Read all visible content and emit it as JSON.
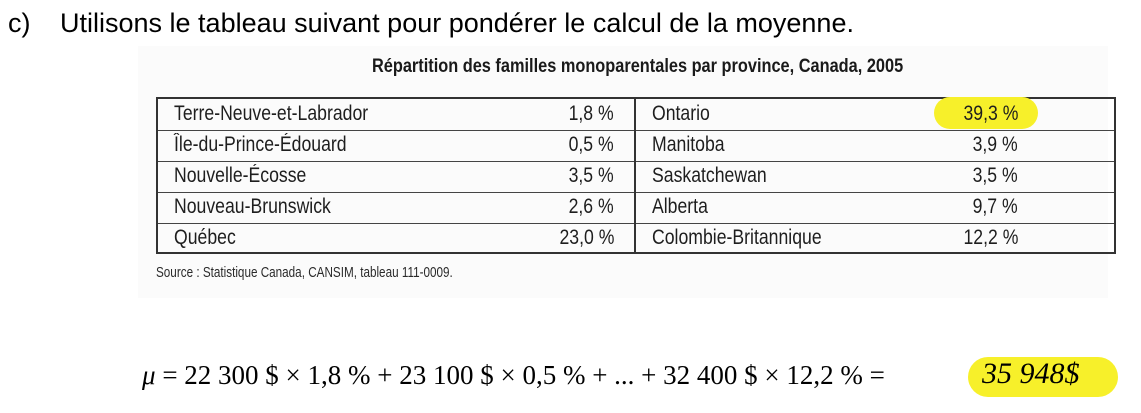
{
  "question": {
    "label": "c)",
    "text": "Utilisons le tableau suivant pour pondérer le calcul de la moyenne."
  },
  "table": {
    "title": "Répartition des familles monoparentales par province, Canada, 2005",
    "left_rows": [
      {
        "province": "Terre-Neuve-et-Labrador",
        "value": "1,8 %"
      },
      {
        "province": "Île-du-Prince-Édouard",
        "value": "0,5 %"
      },
      {
        "province": "Nouvelle-Écosse",
        "value": "3,5 %"
      },
      {
        "province": "Nouveau-Brunswick",
        "value": "2,6 %"
      },
      {
        "province": "Québec",
        "value": "23,0 %"
      }
    ],
    "right_rows": [
      {
        "province": "Ontario",
        "value": "39,3 %"
      },
      {
        "province": "Manitoba",
        "value": "3,9 %"
      },
      {
        "province": "Saskatchewan",
        "value": "3,5 %"
      },
      {
        "province": "Alberta",
        "value": "9,7 %"
      },
      {
        "province": "Colombie-Britannique",
        "value": "12,2 %"
      }
    ],
    "highlighted_value": "39,3 %",
    "source": "Source : Statistique Canada, CANSIM, tableau 111-0009."
  },
  "formula": {
    "symbol": "μ",
    "expression": " = 22 300 $ × 1,8 % + 23 100 $ × 0,5 % + ... + 32 400 $ × 12,2 % =",
    "result": "35 948$"
  },
  "colors": {
    "highlight": "#f7f02a",
    "border": "#333333"
  }
}
